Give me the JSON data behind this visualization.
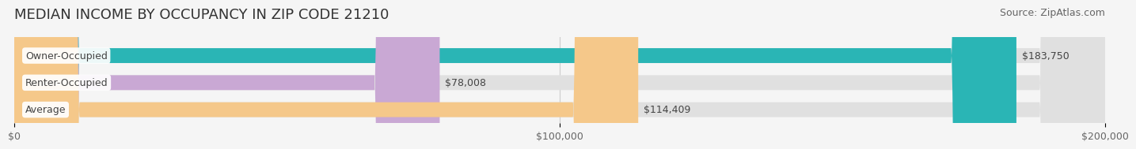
{
  "title": "MEDIAN INCOME BY OCCUPANCY IN ZIP CODE 21210",
  "source": "Source: ZipAtlas.com",
  "categories": [
    "Owner-Occupied",
    "Renter-Occupied",
    "Average"
  ],
  "values": [
    183750,
    78008,
    114409
  ],
  "value_labels": [
    "$183,750",
    "$78,008",
    "$114,409"
  ],
  "bar_colors": [
    "#2ab5b5",
    "#c9a8d4",
    "#f5c88a"
  ],
  "bar_edge_colors": [
    "#2ab5b5",
    "#c9a8d4",
    "#f5c88a"
  ],
  "background_color": "#f5f5f5",
  "bar_background_color": "#e8e8e8",
  "xlim": [
    0,
    200000
  ],
  "xticks": [
    0,
    100000,
    200000
  ],
  "xticklabels": [
    "$0",
    "$100,000",
    "$200,000"
  ],
  "title_fontsize": 13,
  "label_fontsize": 9,
  "tick_fontsize": 9,
  "source_fontsize": 9
}
